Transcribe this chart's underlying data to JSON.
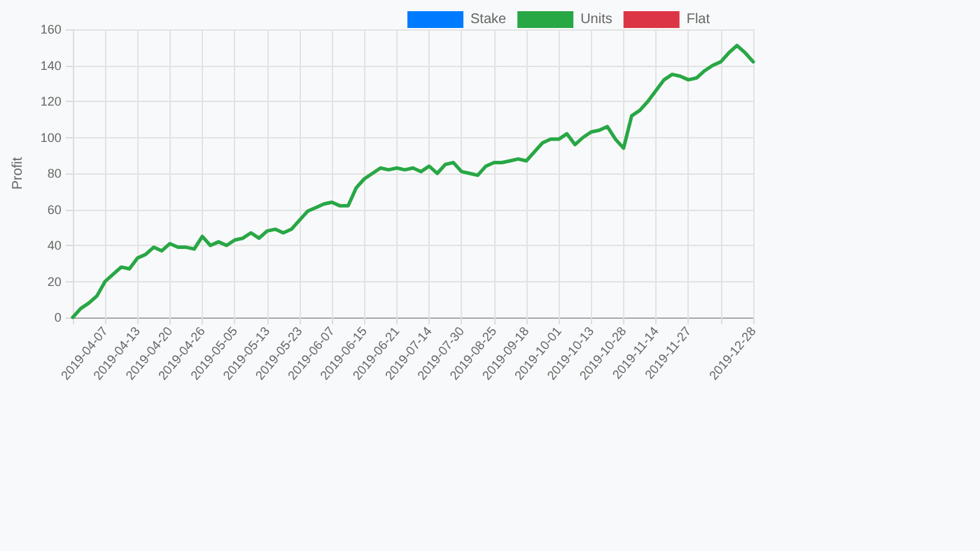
{
  "chart_data": {
    "type": "line",
    "ylabel": "Profit",
    "categories": [
      null,
      null,
      null,
      null,
      "2019-04-07",
      null,
      null,
      null,
      "2019-04-13",
      null,
      null,
      null,
      "2019-04-20",
      null,
      null,
      null,
      "2019-04-26",
      null,
      null,
      null,
      "2019-05-05",
      null,
      null,
      null,
      "2019-05-13",
      null,
      null,
      null,
      "2019-05-23",
      null,
      null,
      null,
      "2019-06-07",
      null,
      null,
      null,
      "2019-06-15",
      null,
      null,
      null,
      "2019-06-21",
      null,
      null,
      null,
      "2019-07-14",
      null,
      null,
      null,
      "2019-07-30",
      null,
      null,
      null,
      "2019-08-25",
      null,
      null,
      null,
      "2019-09-18",
      null,
      null,
      null,
      "2019-10-01",
      null,
      null,
      null,
      "2019-10-13",
      null,
      null,
      null,
      "2019-10-28",
      null,
      null,
      null,
      "2019-11-14",
      null,
      null,
      null,
      "2019-11-27",
      null,
      null,
      null,
      null,
      null,
      null,
      null,
      "2019-12-28"
    ],
    "series": [
      {
        "name": "Stake",
        "color": "#007bff",
        "values": [
          null,
          null,
          null,
          null,
          null,
          null,
          null,
          null,
          null,
          null,
          null,
          null,
          null,
          null,
          null,
          null,
          null,
          null,
          null,
          null,
          null,
          null,
          null,
          null,
          null,
          null,
          null,
          null,
          null,
          null,
          null,
          null,
          null,
          null,
          null,
          null,
          null,
          null,
          null,
          null,
          null,
          null,
          null,
          null,
          null,
          null,
          null,
          null,
          null,
          null,
          null,
          null,
          null,
          null,
          null,
          null,
          null,
          null,
          null,
          null,
          null,
          null,
          null,
          null,
          null,
          null,
          null,
          null,
          null,
          null,
          null,
          null,
          null,
          null,
          null,
          null,
          null,
          null,
          null,
          null,
          null,
          null,
          null,
          null,
          null
        ]
      },
      {
        "name": "Units",
        "color": "#28a745",
        "values": [
          0,
          5,
          8,
          12,
          20,
          24,
          28,
          27,
          33,
          35,
          39,
          37,
          41,
          39,
          39,
          38,
          45,
          40,
          42,
          40,
          43,
          44,
          47,
          44,
          48,
          49,
          47,
          49,
          54,
          59,
          61,
          63,
          64,
          62,
          62,
          72,
          77,
          80,
          83,
          82,
          83,
          82,
          83,
          81,
          84,
          80,
          85,
          86,
          81,
          80,
          79,
          84,
          86,
          86,
          87,
          88,
          87,
          92,
          97,
          99,
          99,
          102,
          96,
          100,
          103,
          104,
          106,
          99,
          94,
          112,
          115,
          120,
          126,
          132,
          135,
          134,
          132,
          133,
          137,
          140,
          142,
          147,
          151,
          147,
          142
        ]
      },
      {
        "name": "Flat",
        "color": "#dc3545",
        "values": [
          null,
          null,
          null,
          null,
          null,
          null,
          null,
          null,
          null,
          null,
          null,
          null,
          null,
          null,
          null,
          null,
          null,
          null,
          null,
          null,
          null,
          null,
          null,
          null,
          null,
          null,
          null,
          null,
          null,
          null,
          null,
          null,
          null,
          null,
          null,
          null,
          null,
          null,
          null,
          null,
          null,
          null,
          null,
          null,
          null,
          null,
          null,
          null,
          null,
          null,
          null,
          null,
          null,
          null,
          null,
          null,
          null,
          null,
          null,
          null,
          null,
          null,
          null,
          null,
          null,
          null,
          null,
          null,
          null,
          null,
          null,
          null,
          null,
          null,
          null,
          null,
          null,
          null,
          null,
          null,
          null,
          null,
          null,
          null,
          null
        ]
      }
    ],
    "ylim": [
      0,
      160
    ],
    "yticks": [
      0,
      20,
      40,
      60,
      80,
      100,
      120,
      140,
      160
    ],
    "grid": true,
    "legend": "top",
    "marker": "none",
    "line_style": "solid"
  }
}
